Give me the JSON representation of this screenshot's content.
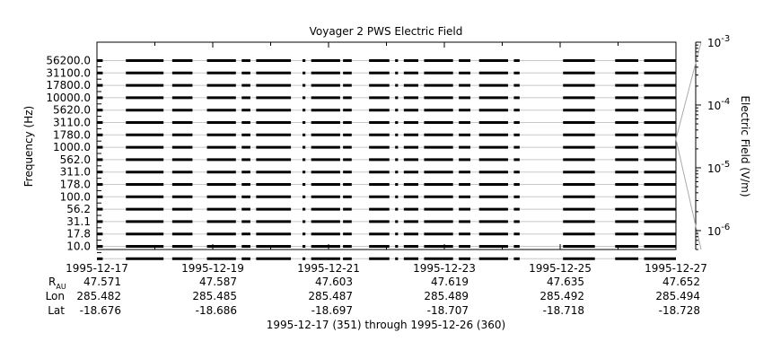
{
  "chart_data": {
    "type": "line",
    "title": "Voyager 2 PWS Electric Field",
    "ylabel": "Frequency (Hz)",
    "y2label": "Electric Field (V/m)",
    "channels": [
      "56200.0",
      "31100.0",
      "17800.0",
      "10000.0",
      "5620.0",
      "3110.0",
      "1780.0",
      "1000.0",
      "562.0",
      "311.0",
      "178.0",
      "100.0",
      "56.2",
      "31.1",
      "17.8",
      "10.0"
    ],
    "x_ticks": [
      "1995-12-17",
      "1995-12-19",
      "1995-12-21",
      "1995-12-23",
      "1995-12-25",
      "1995-12-27"
    ],
    "x_range": [
      "1995-12-17",
      "1995-12-27"
    ],
    "y2_scale": "log",
    "y2_ticks": [
      "10^-3",
      "10^-4",
      "10^-5",
      "10^-6"
    ],
    "y2_range": [
      5e-07,
      0.001
    ],
    "ephemeris": {
      "rows": [
        {
          "label": "R",
          "sub": "AU",
          "values": [
            "47.571",
            "47.587",
            "47.603",
            "47.619",
            "47.635",
            "47.652"
          ]
        },
        {
          "label": "Lon",
          "sub": "",
          "values": [
            "285.482",
            "285.485",
            "285.487",
            "285.489",
            "285.492",
            "285.494"
          ]
        },
        {
          "label": "Lat",
          "sub": "",
          "values": [
            "-18.676",
            "-18.686",
            "-18.697",
            "-18.707",
            "-18.718",
            "-18.728"
          ]
        }
      ]
    },
    "data_segments_days": [
      [
        0.0,
        0.1
      ],
      [
        0.5,
        1.15
      ],
      [
        1.3,
        1.65
      ],
      [
        1.9,
        2.4
      ],
      [
        2.5,
        2.65
      ],
      [
        2.75,
        3.35
      ],
      [
        3.55,
        3.6
      ],
      [
        3.7,
        4.2
      ],
      [
        4.25,
        4.4
      ],
      [
        4.7,
        5.05
      ],
      [
        5.15,
        5.2
      ],
      [
        5.3,
        5.55
      ],
      [
        5.65,
        6.15
      ],
      [
        6.25,
        6.45
      ],
      [
        6.6,
        7.1
      ],
      [
        7.2,
        7.3
      ],
      [
        8.05,
        8.6
      ],
      [
        8.95,
        9.35
      ],
      [
        9.45,
        10.0
      ]
    ],
    "footer": "1995-12-17 (351) through 1995-12-26 (360)"
  }
}
